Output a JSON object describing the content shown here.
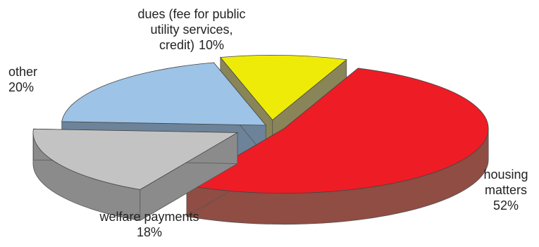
{
  "chart_data": {
    "type": "pie",
    "style": "3d-exploded",
    "total_percent": 100,
    "slices": [
      {
        "id": "housing",
        "label_lines": [
          "housing",
          "matters"
        ],
        "value_text": "52%",
        "value": 52,
        "color": "#ee1c25",
        "side_color": "#8f4d44"
      },
      {
        "id": "welfare",
        "label_lines": [
          "welfare payments"
        ],
        "value_text": "18%",
        "value": 18,
        "color": "#c3c3c3",
        "side_color": "#8b8b8b"
      },
      {
        "id": "other",
        "label_lines": [
          "other"
        ],
        "value_text": "20%",
        "value": 20,
        "color": "#9dc3e6",
        "side_color": "#6c8399"
      },
      {
        "id": "dues",
        "label_lines": [
          "dues (fee for public",
          "utility services,",
          "credit)"
        ],
        "value_text": "10%",
        "value": 10,
        "color": "#eeeb08",
        "side_color": "#898559"
      }
    ]
  }
}
